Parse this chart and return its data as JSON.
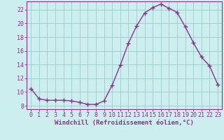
{
  "x": [
    0,
    1,
    2,
    3,
    4,
    5,
    6,
    7,
    8,
    9,
    10,
    11,
    12,
    13,
    14,
    15,
    16,
    17,
    18,
    19,
    20,
    21,
    22,
    23
  ],
  "y": [
    10.5,
    9.0,
    8.8,
    8.8,
    8.8,
    8.7,
    8.5,
    8.2,
    8.2,
    8.7,
    11.0,
    13.9,
    17.1,
    19.6,
    21.5,
    22.3,
    22.8,
    22.2,
    21.6,
    19.5,
    17.2,
    15.1,
    13.8,
    11.1
  ],
  "line_color": "#883388",
  "marker": "D",
  "marker_size": 2.5,
  "bg_color": "#cceeee",
  "grid_color": "#99cccc",
  "ylabel_ticks": [
    8,
    10,
    12,
    14,
    16,
    18,
    20,
    22
  ],
  "xlabel": "Windchill (Refroidissement éolien,°C)",
  "ylim": [
    7.5,
    23.2
  ],
  "xlim": [
    -0.5,
    23.5
  ],
  "label_fontsize": 6.5,
  "tick_fontsize": 6.0,
  "line_width": 1.0,
  "axis_color": "#883388",
  "spine_color": "#883388"
}
